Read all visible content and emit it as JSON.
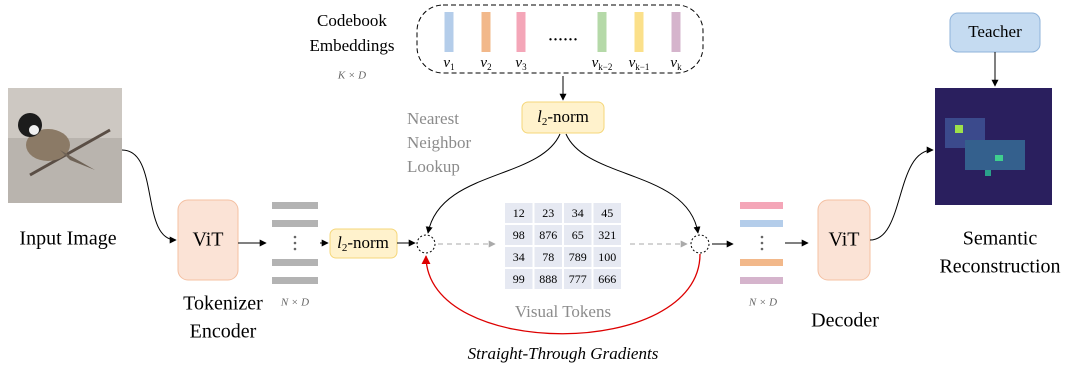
{
  "codebook": {
    "title": [
      "Codebook",
      "Embeddings"
    ],
    "shape": "K × D",
    "vectors": [
      {
        "symbol": "v",
        "index": "1"
      },
      {
        "symbol": "v",
        "index": "2"
      },
      {
        "symbol": "v",
        "index": "3"
      },
      {
        "symbol": "v",
        "index": "k−2"
      },
      {
        "symbol": "v",
        "index": "k−1"
      },
      {
        "symbol": "v",
        "index": "k"
      }
    ],
    "ellipsis": "......"
  },
  "input": {
    "label": "Input Image"
  },
  "encoder": {
    "block": "ViT",
    "label": [
      "Tokenizer",
      "Encoder"
    ],
    "shape": "N × D"
  },
  "norm": {
    "symbol": "l",
    "sub": "2",
    "text": "-norm"
  },
  "lookup": {
    "label": [
      "Nearest",
      "Neighbor",
      "Lookup"
    ]
  },
  "tokens": {
    "label": "Visual Tokens",
    "rows": [
      [
        "12",
        "23",
        "34",
        "45"
      ],
      [
        "98",
        "876",
        "65",
        "321"
      ],
      [
        "34",
        "78",
        "789",
        "100"
      ],
      [
        "99",
        "888",
        "777",
        "666"
      ]
    ]
  },
  "gradients": {
    "label": "Straight-Through Gradients"
  },
  "decoder": {
    "block": "ViT",
    "label": "Decoder",
    "shape": "N × D"
  },
  "teacher": {
    "label": "Teacher"
  },
  "output": {
    "label": [
      "Semantic",
      "Reconstruction"
    ]
  }
}
